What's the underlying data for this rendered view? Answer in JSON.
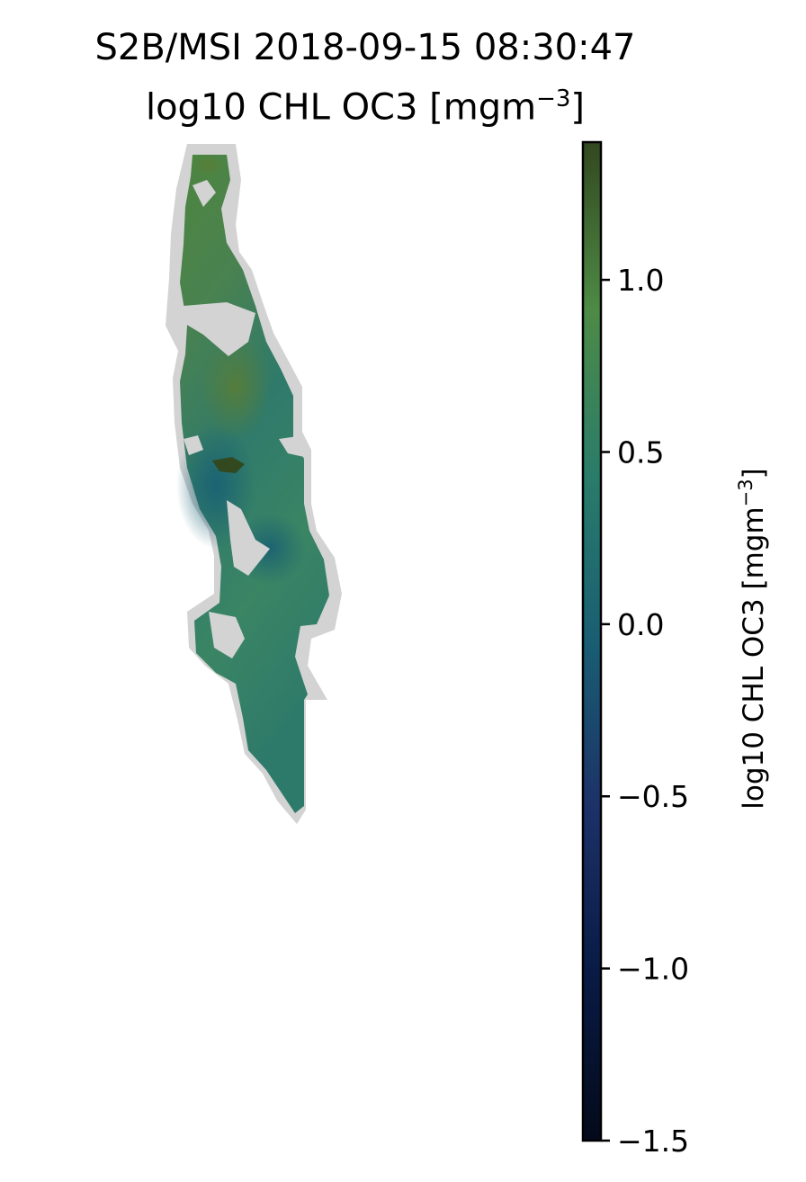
{
  "chart_data": {
    "type": "heatmap",
    "title": "S2B/MSI 2018-09-15 08:30:47",
    "subtitle_prefix": "log10 CHL OC3 [mgm",
    "subtitle_exponent": "−3",
    "subtitle_suffix": "]",
    "colorbar": {
      "label_prefix": "log10 CHL OC3 [mgm",
      "label_exponent": "−3",
      "label_suffix": "]",
      "vmin": -1.5,
      "vmax": 1.4,
      "ticks": [
        {
          "value": -1.5,
          "label": "−1.5"
        },
        {
          "value": -1.0,
          "label": "−1.0"
        },
        {
          "value": -0.5,
          "label": "−0.5"
        },
        {
          "value": 0.0,
          "label": "0.0"
        },
        {
          "value": 0.5,
          "label": "0.5"
        },
        {
          "value": 1.0,
          "label": "1.0"
        }
      ],
      "colormap_stops": [
        "#040a1a",
        "#081a45",
        "#1c3168",
        "#195e73",
        "#2a7c6a",
        "#4d8a45",
        "#32481f"
      ]
    },
    "land_mask_color": "#d3d3d3",
    "axes_visible": false
  }
}
